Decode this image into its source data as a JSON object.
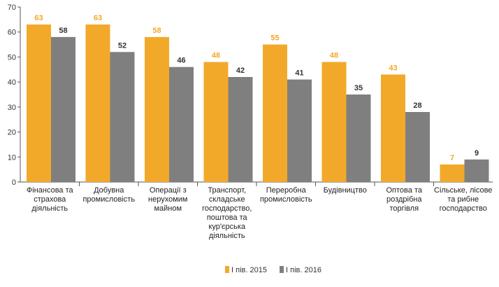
{
  "chart_data": {
    "type": "bar",
    "categories": [
      [
        "Фінансова та",
        "страхова",
        "діяльність"
      ],
      [
        "Добувна",
        "промисловість"
      ],
      [
        "Операції з",
        "нерухомим",
        "майном"
      ],
      [
        "Транспорт,",
        "складське",
        "господарство,",
        "поштова та",
        "кур'єрська",
        "діяльність"
      ],
      [
        "Переробна",
        "промисловість"
      ],
      [
        "Будівництво"
      ],
      [
        "Оптова та",
        "роздрібна",
        "торгівля"
      ],
      [
        "Сільське, лісове",
        "та рибне",
        "господарство"
      ]
    ],
    "series": [
      {
        "name": "І пів. 2015",
        "color": "#F2A92A",
        "label_color": "#F2A92A",
        "values": [
          63,
          63,
          58,
          48,
          55,
          48,
          43,
          7
        ]
      },
      {
        "name": "І пів. 2016",
        "color": "#7F7F7F",
        "label_color": "#333333",
        "values": [
          58,
          52,
          46,
          42,
          41,
          35,
          28,
          9
        ]
      }
    ],
    "y_ticks": [
      0,
      10,
      20,
      30,
      40,
      50,
      60,
      70
    ],
    "ylim": [
      0,
      70
    ],
    "grid": false,
    "legend": "bottom-center"
  }
}
